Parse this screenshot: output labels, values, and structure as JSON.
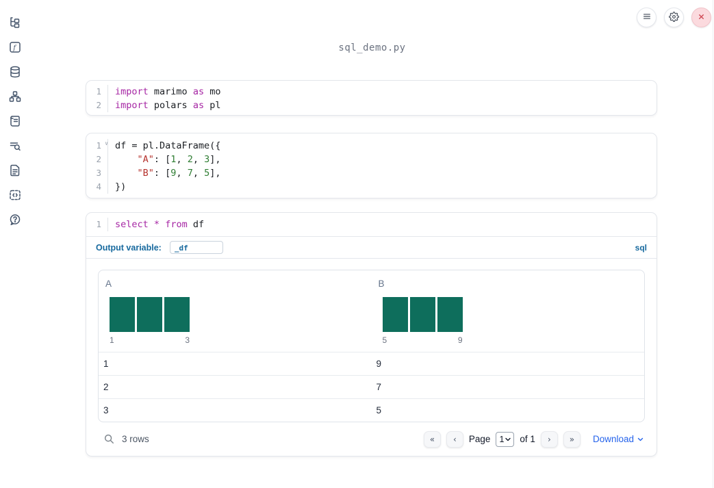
{
  "colors": {
    "keyword": "#a626a4",
    "string": "#b5312c",
    "number": "#2e7d32",
    "plain": "#1b1e23",
    "bar": "#0e6e5c",
    "label_blue": "#17699e",
    "link_blue": "#2563eb"
  },
  "titlebar": {
    "filename": "sql_demo.py"
  },
  "controls": {
    "menu_icon": "hamburger-icon",
    "settings_icon": "gear-icon",
    "shutdown_icon": "close-icon"
  },
  "sidebar": {
    "items": [
      {
        "icon": "file-explorer-icon"
      },
      {
        "icon": "variables-icon"
      },
      {
        "icon": "datasources-icon"
      },
      {
        "icon": "dependency-graph-icon"
      },
      {
        "icon": "logs-icon"
      },
      {
        "icon": "tracing-icon"
      },
      {
        "icon": "documentation-icon"
      },
      {
        "icon": "snippets-icon"
      },
      {
        "icon": "help-icon"
      }
    ]
  },
  "cells": [
    {
      "id": "imports",
      "lines": [
        {
          "n": "1",
          "tokens": [
            [
              "kw",
              "import"
            ],
            [
              "pl",
              " marimo "
            ],
            [
              "kw",
              "as"
            ],
            [
              "pl",
              " mo"
            ]
          ]
        },
        {
          "n": "2",
          "tokens": [
            [
              "kw",
              "import"
            ],
            [
              "pl",
              " polars "
            ],
            [
              "kw",
              "as"
            ],
            [
              "pl",
              " pl"
            ]
          ]
        }
      ]
    },
    {
      "id": "dataframe",
      "lines": [
        {
          "n": "1",
          "fold": true,
          "tokens": [
            [
              "pl",
              "df = pl.DataFrame({"
            ]
          ]
        },
        {
          "n": "2",
          "tokens": [
            [
              "pl",
              "    "
            ],
            [
              "str",
              "\"A\""
            ],
            [
              "pl",
              ": ["
            ],
            [
              "num",
              "1"
            ],
            [
              "pl",
              ", "
            ],
            [
              "num",
              "2"
            ],
            [
              "pl",
              ", "
            ],
            [
              "num",
              "3"
            ],
            [
              "pl",
              "],"
            ]
          ]
        },
        {
          "n": "3",
          "tokens": [
            [
              "pl",
              "    "
            ],
            [
              "str",
              "\"B\""
            ],
            [
              "pl",
              ": ["
            ],
            [
              "num",
              "9"
            ],
            [
              "pl",
              ", "
            ],
            [
              "num",
              "7"
            ],
            [
              "pl",
              ", "
            ],
            [
              "num",
              "5"
            ],
            [
              "pl",
              "],"
            ]
          ]
        },
        {
          "n": "4",
          "tokens": [
            [
              "pl",
              "})"
            ]
          ]
        }
      ]
    },
    {
      "id": "sql",
      "lines": [
        {
          "n": "1",
          "tokens": [
            [
              "kw",
              "select"
            ],
            [
              "pl",
              " "
            ],
            [
              "kw",
              "*"
            ],
            [
              "pl",
              " "
            ],
            [
              "kw",
              "from"
            ],
            [
              "pl",
              " df"
            ]
          ]
        }
      ],
      "footer": {
        "label": "Output variable:",
        "value": "_df",
        "language": "sql"
      }
    }
  ],
  "table": {
    "columns": [
      {
        "name": "A",
        "histogram": {
          "type": "bar",
          "bars": [
            1,
            1,
            1
          ],
          "min_label": "1",
          "max_label": "3"
        }
      },
      {
        "name": "B",
        "histogram": {
          "type": "bar",
          "bars": [
            1,
            1,
            1
          ],
          "min_label": "5",
          "max_label": "9"
        }
      }
    ],
    "rows": [
      [
        "1",
        "9"
      ],
      [
        "2",
        "7"
      ],
      [
        "3",
        "5"
      ]
    ],
    "footer": {
      "row_count": "3 rows",
      "nav": [
        "«",
        "‹",
        "›",
        "»"
      ],
      "page_label": "Page",
      "page_value": "1",
      "of_label": "of 1",
      "download_label": "Download"
    }
  }
}
